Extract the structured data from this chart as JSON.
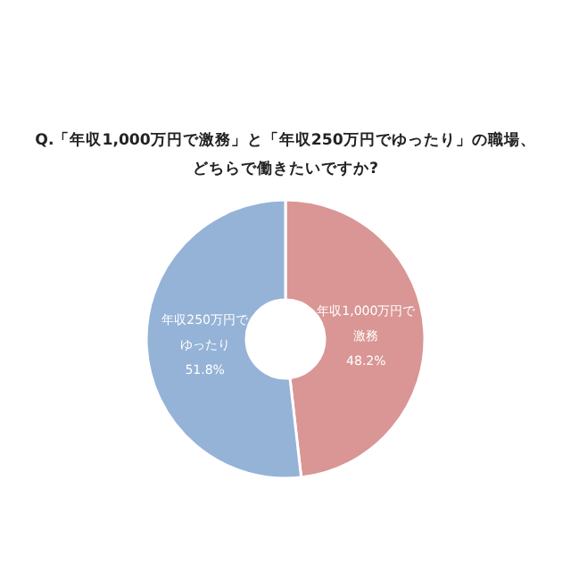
{
  "chart_data": {
    "type": "donut",
    "title": "Q.「年収1,000万円で激務」と「年収250万円でゆったり」の職場、どちらで働きたいですか?",
    "categories": [
      "年収1,000万円で激務",
      "年収250万円でゆったり"
    ],
    "values": [
      48.2,
      51.8
    ],
    "value_labels": [
      "48.2%",
      "51.8%"
    ],
    "colors": [
      "#d99694",
      "#95b3d7"
    ]
  }
}
